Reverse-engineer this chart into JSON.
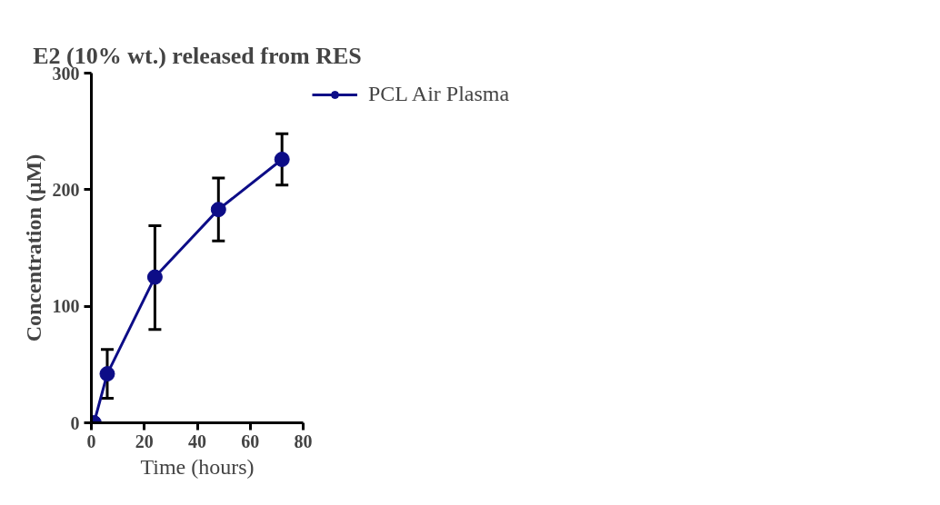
{
  "chart_data": {
    "type": "line",
    "title": "E2 (10% wt.) released from RES",
    "xlabel": "Time (hours)",
    "ylabel": "Concentration (µM)",
    "x": [
      1,
      6,
      24,
      48,
      72
    ],
    "series": [
      {
        "name": "PCL Air Plasma",
        "color": "#0d0d87",
        "values": [
          0,
          42,
          125,
          183,
          226
        ],
        "errors": [
          null,
          [
            21,
            63
          ],
          [
            80,
            169
          ],
          [
            156,
            210
          ],
          [
            204,
            248
          ]
        ]
      }
    ],
    "xlim": [
      0,
      80
    ],
    "xticks": [
      0,
      20,
      40,
      60,
      80
    ],
    "ylim": [
      0,
      300
    ],
    "yticks": [
      0,
      100,
      200,
      300
    ],
    "grid": false,
    "legend": "top right",
    "marker": "circle",
    "line_style": "solid"
  }
}
